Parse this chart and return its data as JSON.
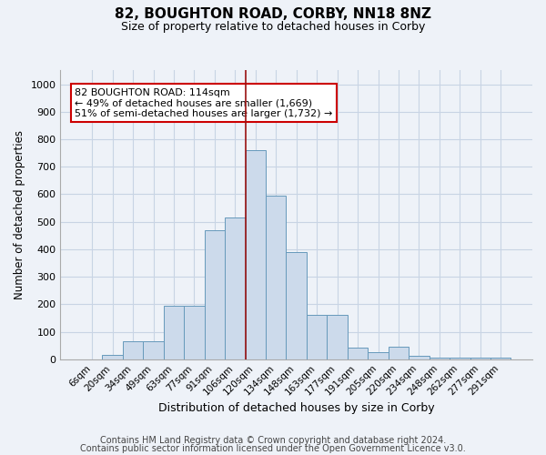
{
  "title": "82, BOUGHTON ROAD, CORBY, NN18 8NZ",
  "subtitle": "Size of property relative to detached houses in Corby",
  "xlabel": "Distribution of detached houses by size in Corby",
  "ylabel": "Number of detached properties",
  "footer_line1": "Contains HM Land Registry data © Crown copyright and database right 2024.",
  "footer_line2": "Contains public sector information licensed under the Open Government Licence v3.0.",
  "bar_labels": [
    "6sqm",
    "20sqm",
    "34sqm",
    "49sqm",
    "63sqm",
    "77sqm",
    "91sqm",
    "106sqm",
    "120sqm",
    "134sqm",
    "148sqm",
    "163sqm",
    "177sqm",
    "191sqm",
    "205sqm",
    "220sqm",
    "234sqm",
    "248sqm",
    "262sqm",
    "277sqm",
    "291sqm"
  ],
  "bar_values": [
    0,
    15,
    65,
    65,
    195,
    195,
    470,
    515,
    760,
    595,
    390,
    160,
    160,
    42,
    25,
    45,
    12,
    7,
    7,
    7,
    7
  ],
  "bar_color": "#ccdaeb",
  "bar_edge_color": "#6699bb",
  "grid_color": "#c8d4e4",
  "background_color": "#eef2f8",
  "vline_color": "#991111",
  "annotation_text": "82 BOUGHTON ROAD: 114sqm\n← 49% of detached houses are smaller (1,669)\n51% of semi-detached houses are larger (1,732) →",
  "annotation_box_color": "white",
  "annotation_box_edge_color": "#cc0000",
  "ylim": [
    0,
    1050
  ],
  "yticks": [
    0,
    100,
    200,
    300,
    400,
    500,
    600,
    700,
    800,
    900,
    1000
  ]
}
